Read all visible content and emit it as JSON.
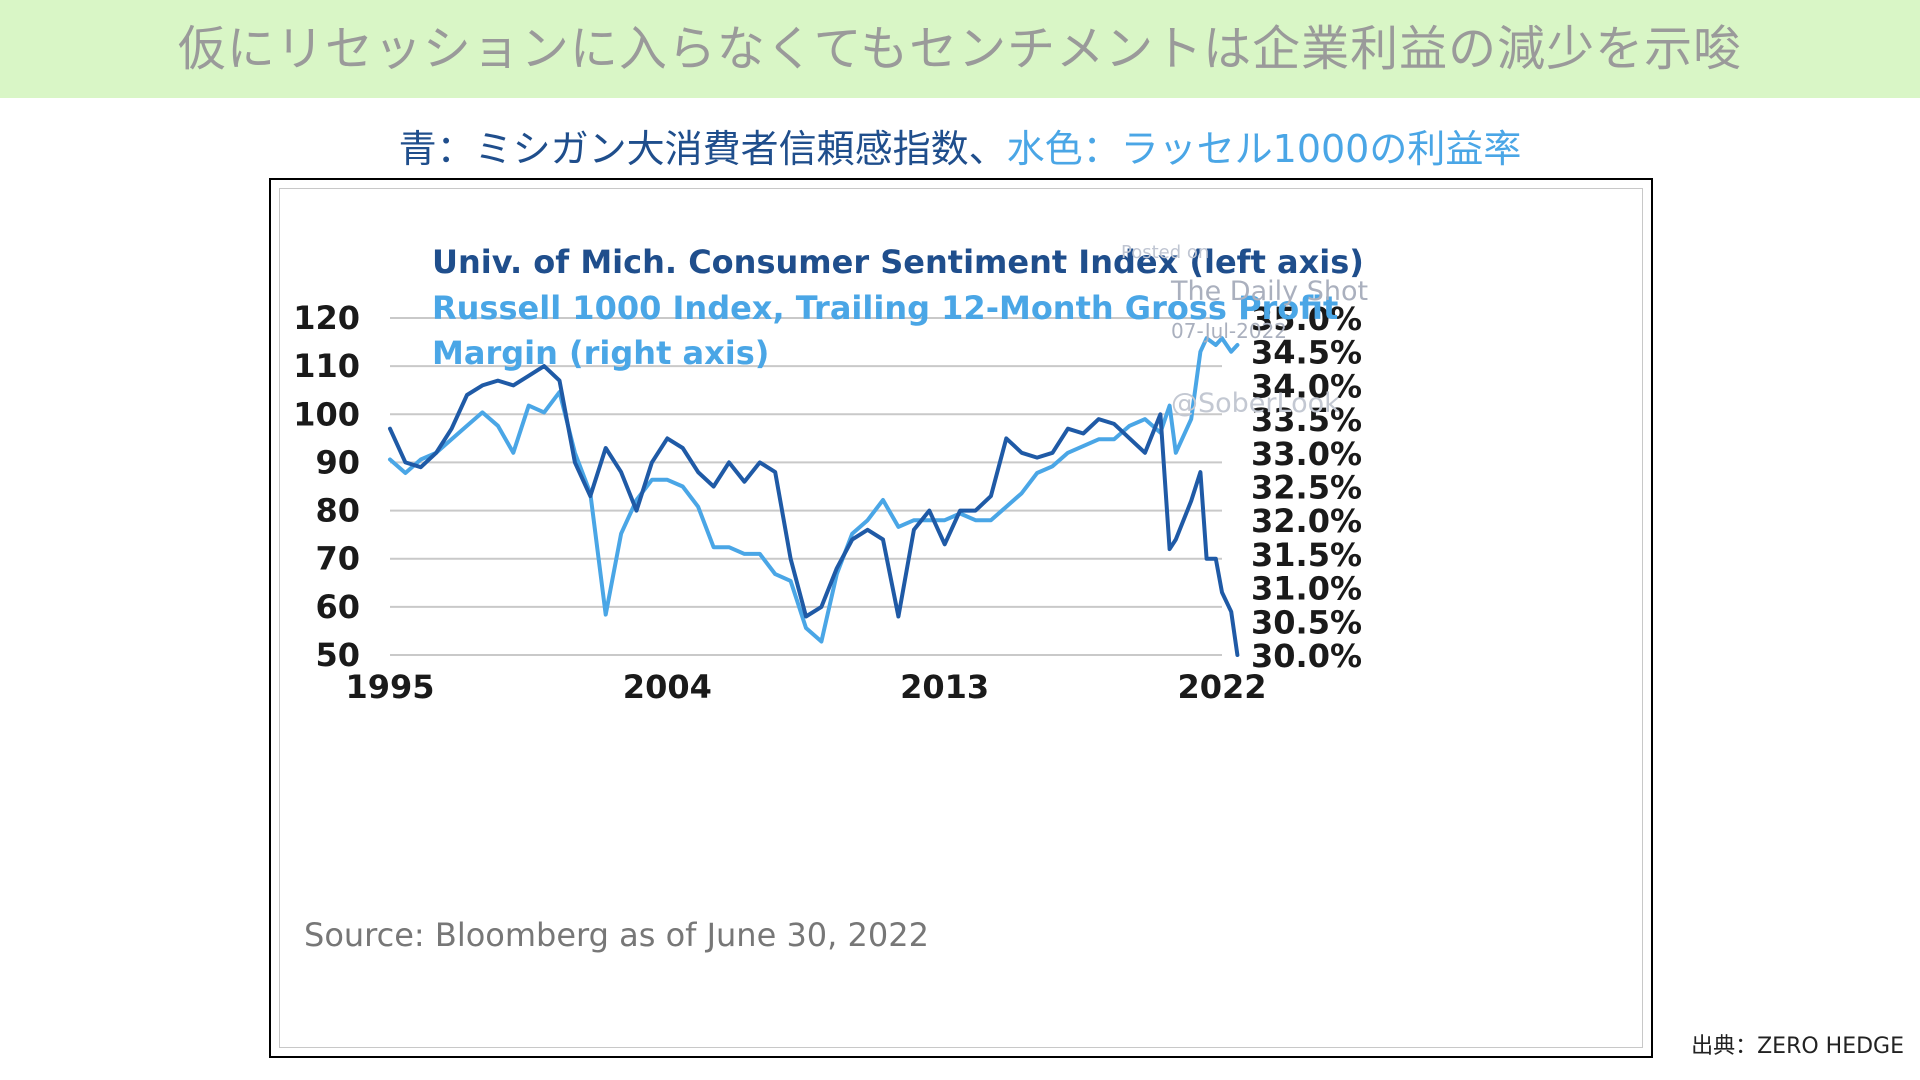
{
  "banner": {
    "title": "仮にリセッションに入らなくてもセンチメントは企業利益の減少を示唆"
  },
  "legend": {
    "blue_text": "青：ミシガン大消費者信頼感指数、",
    "light_text": "水色：ラッセル1000の利益率"
  },
  "credit": "出典：ZERO HEDGE",
  "colors": {
    "banner_bg": "#d9f6c6",
    "dark_series": "#1f5aa6",
    "light_series": "#4aa6e6",
    "grid": "#c9c9c9"
  },
  "watermark": {
    "line1": "Posted on",
    "line2": "The Daily Shot",
    "line3": "07-Jul-2022",
    "line4": "@SoberLook"
  },
  "chart_data": {
    "type": "line",
    "title_lines": [
      "Univ. of Mich. Consumer Sentiment Index (left axis)",
      "Russell 1000 Index, Trailing 12-Month Gross Profit",
      "Margin (right axis)"
    ],
    "source": "Source: Bloomberg as of June 30, 2022",
    "x_ticks": [
      1995,
      2004,
      2013,
      2022
    ],
    "x_tick_labels": [
      "1995",
      "2004",
      "2013",
      "2022"
    ],
    "xlim": [
      1995,
      2022
    ],
    "y_left": {
      "ticks": [
        50,
        60,
        70,
        80,
        90,
        100,
        110,
        120
      ],
      "tick_labels": [
        "50",
        "60",
        "70",
        "80",
        "90",
        "100",
        "110",
        "120"
      ],
      "lim": [
        50,
        120
      ]
    },
    "y_right": {
      "ticks": [
        30.0,
        30.5,
        31.0,
        31.5,
        32.0,
        32.5,
        33.0,
        33.5,
        34.0,
        34.5,
        35.0
      ],
      "tick_labels": [
        "30.0%",
        "30.5%",
        "31.0%",
        "31.5%",
        "32.0%",
        "32.5%",
        "33.0%",
        "33.5%",
        "34.0%",
        "34.5%",
        "35.0%"
      ],
      "lim": [
        30.0,
        35.0
      ]
    },
    "grid": true,
    "series": [
      {
        "axis": "left",
        "x": [
          1995.0,
          1995.5,
          1996.0,
          1996.5,
          1997.0,
          1997.5,
          1998.0,
          1998.5,
          1999.0,
          1999.5,
          2000.0,
          2000.5,
          2001.0,
          2001.5,
          2002.0,
          2002.5,
          2003.0,
          2003.5,
          2004.0,
          2004.5,
          2005.0,
          2005.5,
          2006.0,
          2006.5,
          2007.0,
          2007.5,
          2008.0,
          2008.5,
          2009.0,
          2009.5,
          2010.0,
          2010.5,
          2011.0,
          2011.5,
          2012.0,
          2012.5,
          2013.0,
          2013.5,
          2014.0,
          2014.5,
          2015.0,
          2015.5,
          2016.0,
          2016.5,
          2017.0,
          2017.5,
          2018.0,
          2018.5,
          2019.0,
          2019.5,
          2020.0,
          2020.3,
          2020.5,
          2021.0,
          2021.3,
          2021.5,
          2021.8,
          2022.0,
          2022.3,
          2022.5
        ],
        "values": [
          97,
          90,
          89,
          92,
          97,
          104,
          106,
          107,
          106,
          108,
          110,
          107,
          90,
          83,
          93,
          88,
          80,
          90,
          95,
          93,
          88,
          85,
          90,
          86,
          90,
          88,
          70,
          58,
          60,
          68,
          74,
          76,
          74,
          58,
          76,
          80,
          73,
          80,
          80,
          83,
          95,
          92,
          91,
          92,
          97,
          96,
          99,
          98,
          95,
          92,
          100,
          72,
          74,
          82,
          88,
          70,
          70,
          63,
          59,
          50
        ]
      },
      {
        "axis": "right",
        "x": [
          1995.0,
          1995.5,
          1996.0,
          1996.5,
          1997.0,
          1997.5,
          1998.0,
          1998.5,
          1999.0,
          1999.5,
          2000.0,
          2000.5,
          2001.0,
          2001.5,
          2002.0,
          2002.5,
          2003.0,
          2003.5,
          2004.0,
          2004.5,
          2005.0,
          2005.5,
          2006.0,
          2006.5,
          2007.0,
          2007.5,
          2008.0,
          2008.5,
          2009.0,
          2009.5,
          2010.0,
          2010.5,
          2011.0,
          2011.5,
          2012.0,
          2012.5,
          2013.0,
          2013.5,
          2014.0,
          2014.5,
          2015.0,
          2015.5,
          2016.0,
          2016.5,
          2017.0,
          2017.5,
          2018.0,
          2018.5,
          2019.0,
          2019.5,
          2020.0,
          2020.3,
          2020.5,
          2021.0,
          2021.3,
          2021.5,
          2021.8,
          2022.0,
          2022.3,
          2022.5
        ],
        "values": [
          32.9,
          32.7,
          32.9,
          33.0,
          33.2,
          33.4,
          33.6,
          33.4,
          33.0,
          33.7,
          33.6,
          33.9,
          33.0,
          32.4,
          30.6,
          31.8,
          32.3,
          32.6,
          32.6,
          32.5,
          32.2,
          31.6,
          31.6,
          31.5,
          31.5,
          31.2,
          31.1,
          30.4,
          30.2,
          31.2,
          31.8,
          32.0,
          32.3,
          31.9,
          32.0,
          32.0,
          32.0,
          32.1,
          32.0,
          32.0,
          32.2,
          32.4,
          32.7,
          32.8,
          33.0,
          33.1,
          33.2,
          33.2,
          33.4,
          33.5,
          33.3,
          33.7,
          33.0,
          33.5,
          34.5,
          34.7,
          34.6,
          34.7,
          34.5,
          34.6
        ]
      }
    ]
  }
}
